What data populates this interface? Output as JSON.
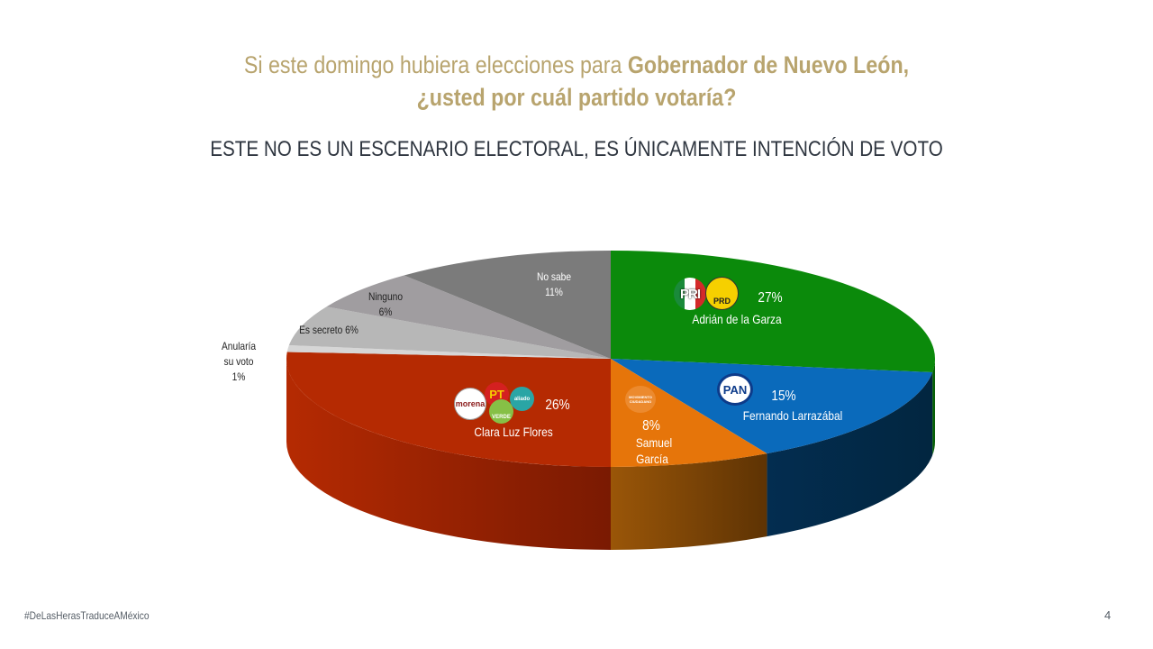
{
  "header": {
    "title_line1_regular": "Si este domingo hubiera elecciones para ",
    "title_line1_bold": "Gobernador de Nuevo León,",
    "title_line2_bold": "¿usted por cuál partido votaría?",
    "subtitle": "ESTE NO ES UN ESCENARIO ELECTORAL, ES ÚNICAMENTE INTENCIÓN DE VOTO"
  },
  "footer": {
    "hashtag": "#DeLasHerasTraduceAMéxico",
    "page_number": "4"
  },
  "chart_data": {
    "type": "pie",
    "style": "3d",
    "title": "Si este domingo hubiera elecciones para Gobernador de Nuevo León, ¿usted por cuál partido votaría?",
    "start": "top",
    "direction": "clockwise",
    "slices": [
      {
        "name": "Adrián de la Garza",
        "value": 27,
        "label": "27%",
        "color": "#0b8a0b",
        "side_color": "#066006",
        "logos": [
          "PRI",
          "PRD"
        ]
      },
      {
        "name": "Fernando Larrazábal",
        "value": 15,
        "label": "15%",
        "color": "#0a6abb",
        "side_color": "#032a4a",
        "logos": [
          "PAN"
        ]
      },
      {
        "name": "Samuel García",
        "value": 8,
        "label": "8%",
        "color": "#e6750a",
        "side_color": "#8a4a05",
        "logos": [
          "Movimiento Ciudadano"
        ]
      },
      {
        "name": "Clara Luz Flores",
        "value": 26,
        "label": "26%",
        "color": "#b52a02",
        "side_color": "#8a2002",
        "logos": [
          "morena",
          "PT",
          "VERDE",
          "nueva alianza"
        ]
      },
      {
        "name": "Anularía su voto",
        "value": 1,
        "label": "1%",
        "color": "#d6d6d6",
        "side_color": "#b0b0b0",
        "logos": []
      },
      {
        "name": "Es secreto",
        "value": 6,
        "label": "6%",
        "color": "#b7b7b7",
        "side_color": "#999999",
        "logos": []
      },
      {
        "name": "Ninguno",
        "value": 6,
        "label": "6%",
        "color": "#a09da0",
        "side_color": "#807d80",
        "logos": []
      },
      {
        "name": "No sabe",
        "value": 11,
        "label": "11%",
        "color": "#7b7b7b",
        "side_color": "#5c5c5c",
        "logos": []
      }
    ]
  },
  "labels": {
    "adrian_name": "Adrián de la Garza",
    "adrian_pct": "27%",
    "fernando_name": "Fernando Larrazábal",
    "fernando_pct": "15%",
    "samuel_pct": "8%",
    "samuel_name1": "Samuel",
    "samuel_name2": "García",
    "clara_name": "Clara Luz Flores",
    "clara_pct": "26%",
    "anularia_l1": "Anularía",
    "anularia_l2": "su voto",
    "anularia_pct": "1%",
    "secreto": "Es secreto 6%",
    "ninguno": "Ninguno",
    "ninguno_pct": "6%",
    "nosabe": "No sabe",
    "nosabe_pct": "11%"
  },
  "logos": {
    "pri": "PRI",
    "prd": "PRD",
    "pan": "PAN",
    "morena": "morena",
    "pt": "PT",
    "verde": "VERDE",
    "alianza": "aliado",
    "mc": "MOVIMIENTO CIUDADANO"
  }
}
